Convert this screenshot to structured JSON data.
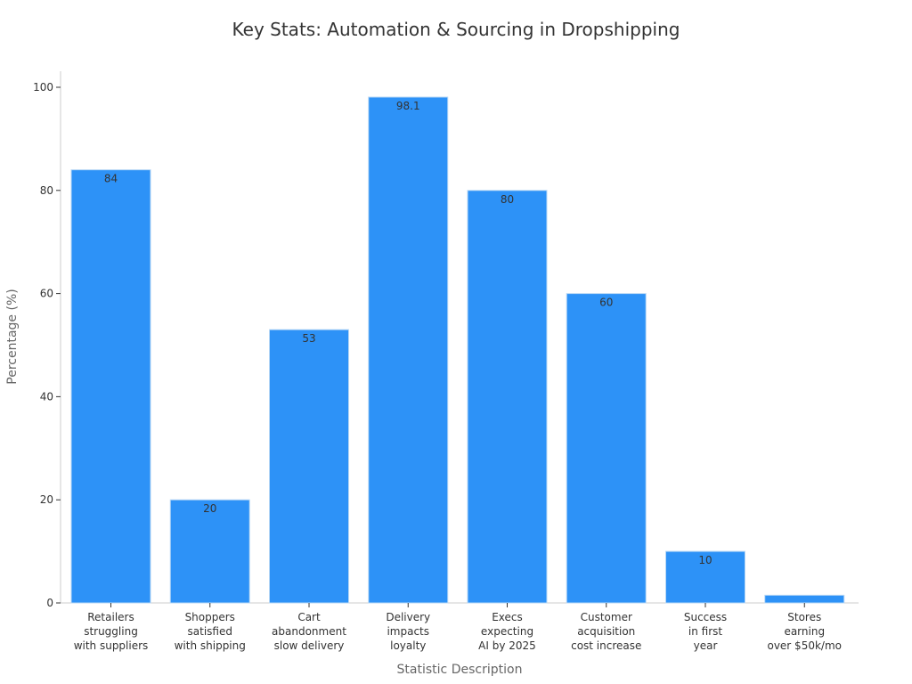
{
  "chart_data": {
    "type": "bar",
    "title": "Key Stats: Automation & Sourcing in Dropshipping",
    "xlabel": "Statistic Description",
    "ylabel": "Percentage (%)",
    "ylim": [
      0,
      103
    ],
    "yticks": [
      0,
      20,
      40,
      60,
      80,
      100
    ],
    "categories": [
      [
        "Retailers",
        "struggling",
        "with suppliers"
      ],
      [
        "Shoppers",
        "satisfied",
        "with shipping"
      ],
      [
        "Cart",
        "abandonment",
        "slow delivery"
      ],
      [
        "Delivery",
        "impacts",
        "loyalty"
      ],
      [
        "Execs",
        "expecting",
        "AI by 2025"
      ],
      [
        "Customer",
        "acquisition",
        "cost increase"
      ],
      [
        "Success",
        "in first",
        "year"
      ],
      [
        "Stores",
        "earning",
        "over $50k/mo"
      ]
    ],
    "values": [
      84,
      20,
      53,
      98.1,
      80,
      60,
      10,
      1.5
    ],
    "data_labels": [
      "84",
      "20",
      "53",
      "98.1",
      "80",
      "60",
      "10",
      ""
    ],
    "bar_color": "#2d92f7",
    "grid": false,
    "legend": "none"
  }
}
